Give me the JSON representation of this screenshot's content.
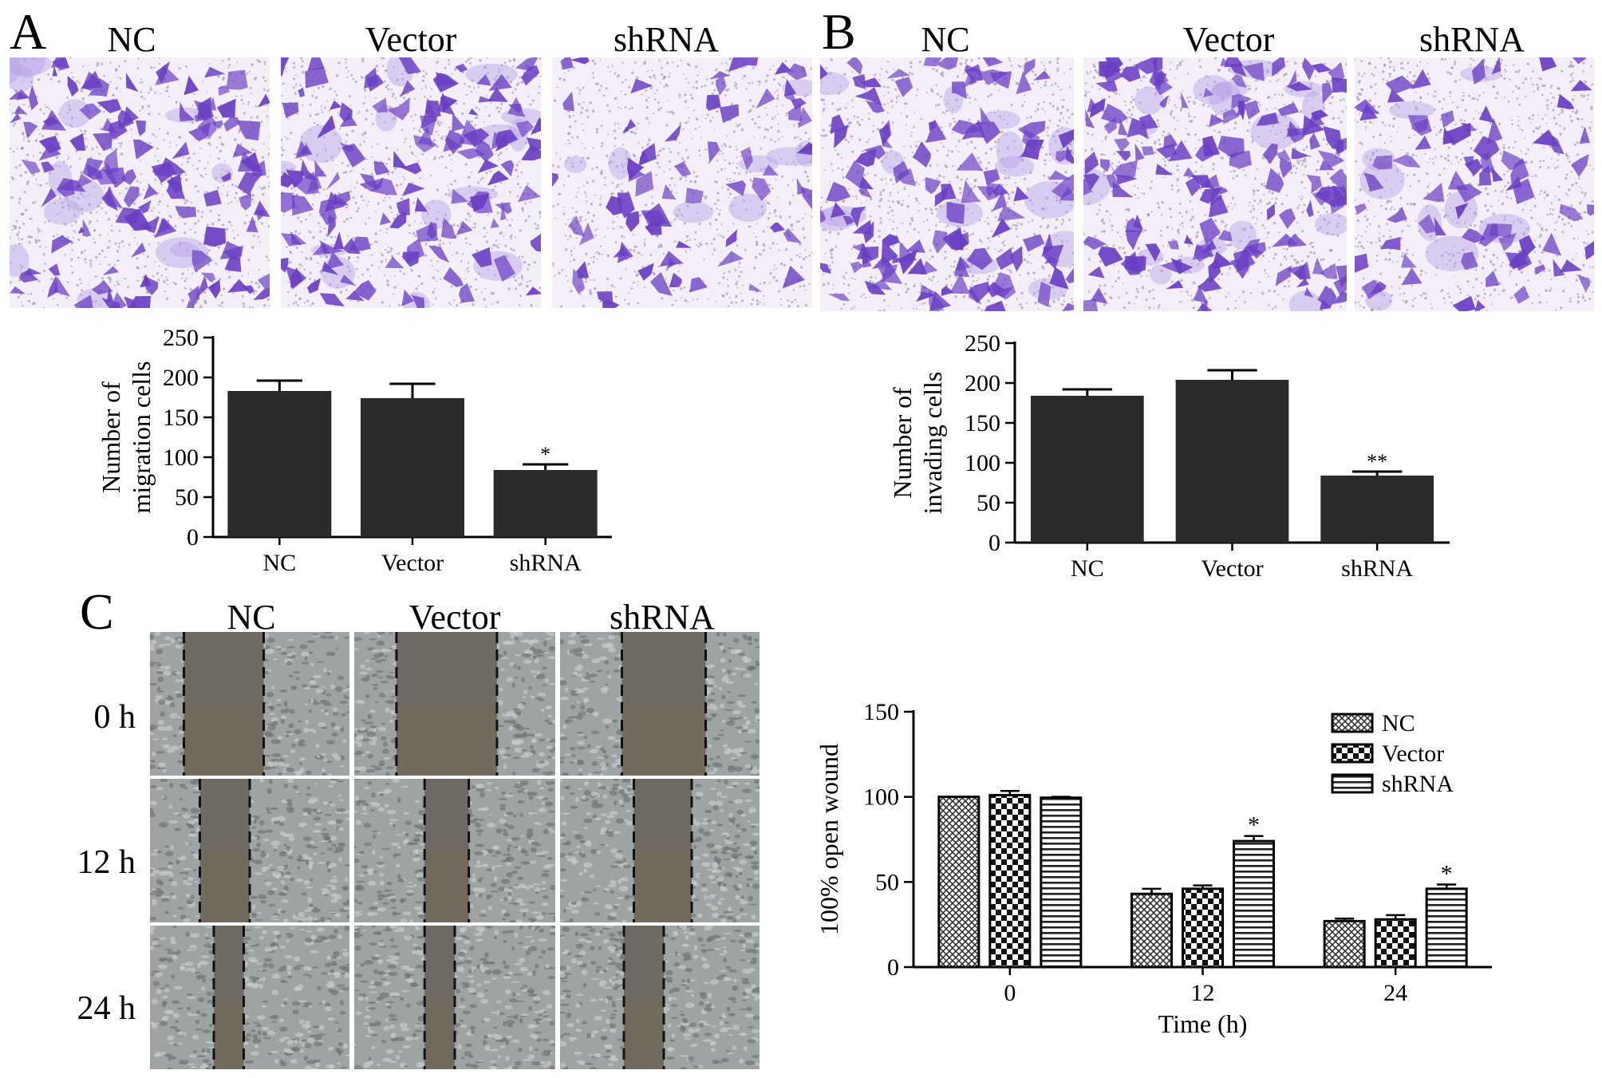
{
  "panel_letters": [
    "A",
    "B",
    "C"
  ],
  "panel_a": {
    "column_labels": [
      "NC",
      "Vector",
      "shRNA"
    ]
  },
  "panel_b": {
    "column_labels": [
      "NC",
      "Vector",
      "shRNA"
    ]
  },
  "panel_c": {
    "column_labels": [
      "NC",
      "Vector",
      "shRNA"
    ],
    "row_labels": [
      "0 h",
      "12 h",
      "24 h"
    ]
  },
  "colors": {
    "stain": "#6a3fc4",
    "stain_light": "#b9a2e6",
    "wound_gap": "#6f6a63",
    "wound_cells": "#9ea3a3",
    "bar": "#2b2b2b"
  },
  "chart_data": [
    {
      "type": "bar",
      "id": "migration",
      "categories": [
        "NC",
        "Vector",
        "shRNA"
      ],
      "values": [
        183,
        174,
        84
      ],
      "errors": [
        13,
        18,
        7
      ],
      "annotations": [
        "",
        "",
        "*"
      ],
      "ylabel_lines": [
        "Number of",
        "migration cells"
      ],
      "xlabel": "",
      "ylim": [
        0,
        250
      ],
      "yticks": [
        0,
        50,
        100,
        150,
        200,
        250
      ],
      "grid": false
    },
    {
      "type": "bar",
      "id": "invasion",
      "categories": [
        "NC",
        "Vector",
        "shRNA"
      ],
      "values": [
        184,
        204,
        84
      ],
      "errors": [
        8,
        12,
        5
      ],
      "annotations": [
        "",
        "",
        "**"
      ],
      "ylabel_lines": [
        "Number of",
        "invading cells"
      ],
      "xlabel": "",
      "ylim": [
        0,
        250
      ],
      "yticks": [
        0,
        50,
        100,
        150,
        200,
        250
      ],
      "grid": false
    },
    {
      "type": "bar",
      "id": "wound",
      "categories": [
        "0",
        "12",
        "24"
      ],
      "series": [
        {
          "name": "NC",
          "pattern": "crosshatch",
          "values": [
            100,
            43,
            27
          ],
          "errors": [
            0,
            3,
            1.5
          ],
          "annotations": [
            "",
            "",
            ""
          ]
        },
        {
          "name": "Vector",
          "pattern": "checker",
          "values": [
            101,
            46,
            28
          ],
          "errors": [
            2.5,
            2,
            2.5
          ],
          "annotations": [
            "",
            "",
            ""
          ]
        },
        {
          "name": "shRNA",
          "pattern": "hstripes",
          "values": [
            99.5,
            74,
            46
          ],
          "errors": [
            0.5,
            3,
            2.5
          ],
          "annotations": [
            "",
            "*",
            "*"
          ]
        }
      ],
      "ylabel": "100% open wound",
      "xlabel": "Time (h)",
      "ylim": [
        0,
        150
      ],
      "yticks": [
        0,
        50,
        100,
        150
      ],
      "legend_position": "top-right",
      "grid": false
    }
  ]
}
